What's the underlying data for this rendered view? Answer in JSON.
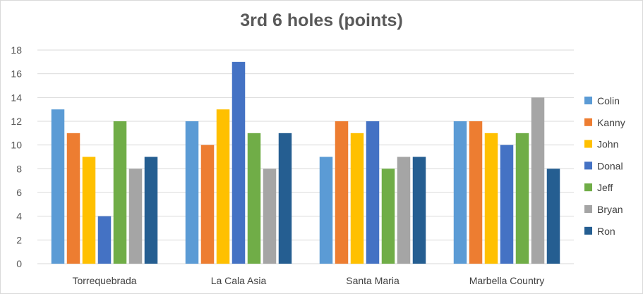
{
  "chart_data": {
    "type": "bar",
    "title": "3rd 6 holes (points)",
    "categories": [
      "Torrequebrada",
      "La Cala Asia",
      "Santa Maria",
      "Marbella Country"
    ],
    "series": [
      {
        "name": "Colin",
        "color": "#5b9bd5",
        "values": [
          13,
          12,
          9,
          12
        ]
      },
      {
        "name": "Kanny",
        "color": "#ed7d31",
        "values": [
          11,
          10,
          12,
          12
        ]
      },
      {
        "name": "John",
        "color": "#ffc000",
        "values": [
          9,
          13,
          11,
          11
        ]
      },
      {
        "name": "Donal",
        "color": "#4472c4",
        "values": [
          4,
          17,
          12,
          10
        ]
      },
      {
        "name": "Jeff",
        "color": "#70ad47",
        "values": [
          12,
          11,
          8,
          11
        ]
      },
      {
        "name": "Bryan",
        "color": "#a5a5a5",
        "values": [
          8,
          8,
          9,
          14
        ]
      },
      {
        "name": "Ron",
        "color": "#255e91",
        "values": [
          9,
          11,
          9,
          8
        ]
      }
    ],
    "ylim": [
      0,
      18
    ],
    "yticks": [
      0,
      2,
      4,
      6,
      8,
      10,
      12,
      14,
      16,
      18
    ],
    "grid": true,
    "legend": "right"
  }
}
